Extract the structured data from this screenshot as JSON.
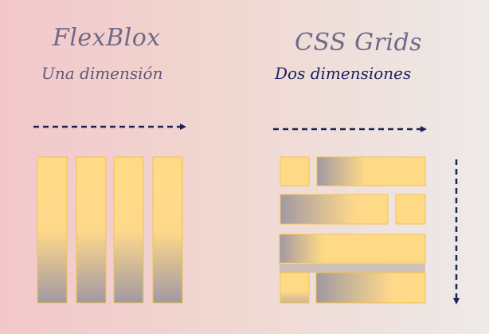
{
  "flexbox": {
    "title": "FlexBlox",
    "subtitle": "Una dimensión"
  },
  "grid": {
    "title": "CSS Grids",
    "subtitle": "Dos dimensiones"
  },
  "colors": {
    "title": "#6f6a88",
    "subtitle_flex": "#5f5a75",
    "subtitle_grid": "#1d2460",
    "arrow": "#1a2456",
    "box_light": "#ffda86",
    "box_dark": "#a199a3",
    "box_border": "#f2c34a"
  }
}
